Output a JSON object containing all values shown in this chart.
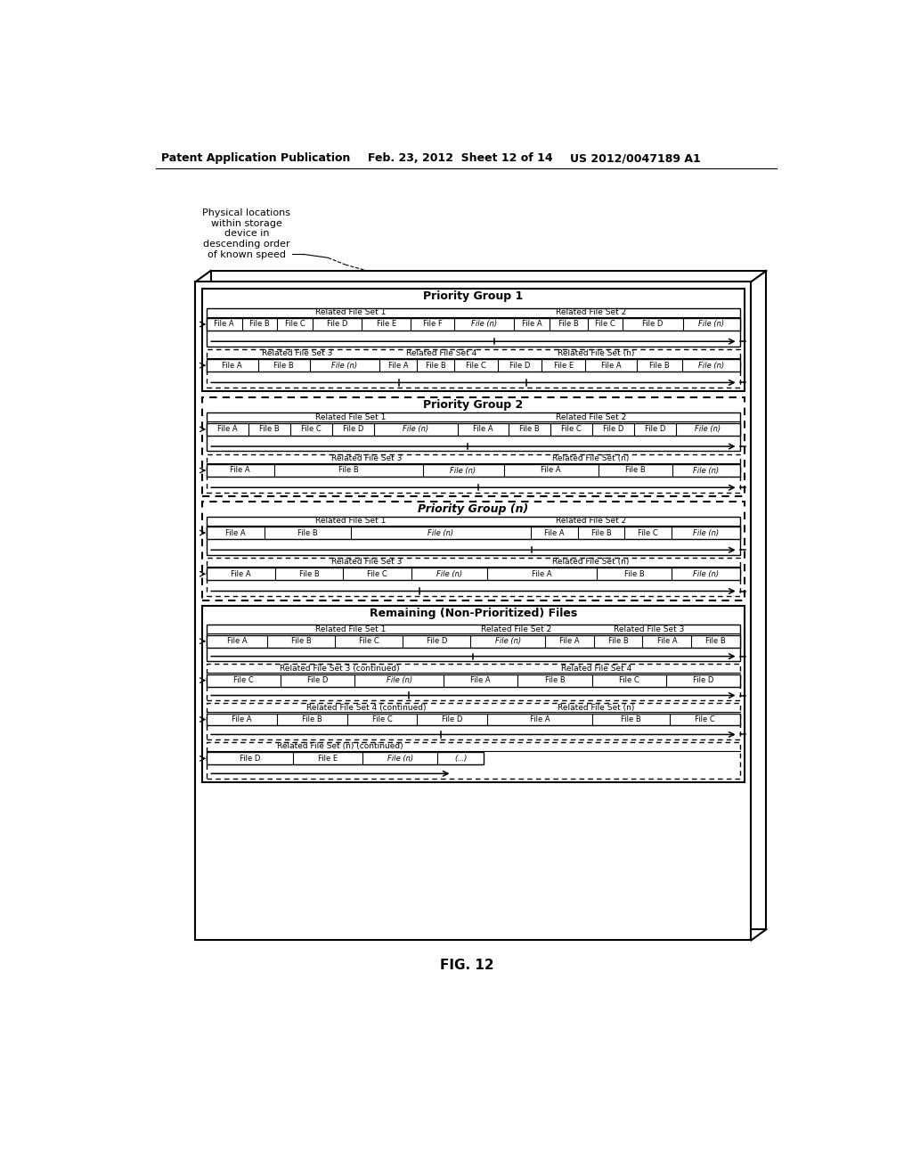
{
  "title": "FIG. 12",
  "header_left": "Patent Application Publication",
  "header_mid": "Feb. 23, 2012  Sheet 12 of 14",
  "header_right": "US 2012/0047189 A1",
  "annotation": "Physical locations\nwithin storage\ndevice in\ndescending order\nof known speed",
  "background": "#ffffff"
}
